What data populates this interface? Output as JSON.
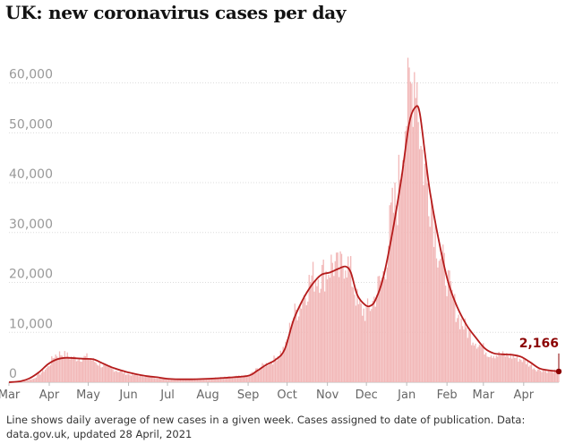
{
  "title": "UK: new coronavirus cases per day",
  "footnote": "Line shows daily average of new cases in a given week. Cases assigned to date of publication. Data: data.gov.uk, updated 28 April, 2021",
  "chart_data": {
    "type": "bar",
    "title": "UK: new coronavirus cases per day",
    "xlabel": "",
    "ylabel": "",
    "date_range": [
      "2020-03-01",
      "2021-04-28"
    ],
    "ylim": [
      0,
      68000
    ],
    "yticks": [
      0,
      10000,
      20000,
      30000,
      40000,
      50000,
      60000
    ],
    "ytick_labels": [
      "0",
      "10,000",
      "20,000",
      "30,000",
      "40,000",
      "50,000",
      "60,000"
    ],
    "xticks": [
      {
        "date": "2020-03-01",
        "label": "Mar"
      },
      {
        "date": "2020-04-01",
        "label": "Apr"
      },
      {
        "date": "2020-05-01",
        "label": "May"
      },
      {
        "date": "2020-06-01",
        "label": "Jun"
      },
      {
        "date": "2020-07-01",
        "label": "Jul"
      },
      {
        "date": "2020-08-01",
        "label": "Aug"
      },
      {
        "date": "2020-09-01",
        "label": "Sep"
      },
      {
        "date": "2020-10-01",
        "label": "Oct"
      },
      {
        "date": "2020-11-01",
        "label": "Nov"
      },
      {
        "date": "2020-12-01",
        "label": "Dec"
      },
      {
        "date": "2021-01-01",
        "label": "Jan"
      },
      {
        "date": "2021-02-01",
        "label": "Feb"
      },
      {
        "date": "2021-03-01",
        "label": "Mar"
      },
      {
        "date": "2021-04-01",
        "label": "Apr"
      }
    ],
    "grid": true,
    "legend": "none",
    "series": [
      {
        "type": "bar",
        "color": "#f2b8b8",
        "daily_points": [
          [
            "2020-03-01",
            20
          ],
          [
            "2020-03-10",
            80
          ],
          [
            "2020-03-20",
            700
          ],
          [
            "2020-03-31",
            3000
          ],
          [
            "2020-04-05",
            5400
          ],
          [
            "2020-04-10",
            5700
          ],
          [
            "2020-04-20",
            4800
          ],
          [
            "2020-05-01",
            5000
          ],
          [
            "2020-05-10",
            3500
          ],
          [
            "2020-05-20",
            2600
          ],
          [
            "2020-06-01",
            1600
          ],
          [
            "2020-06-15",
            1200
          ],
          [
            "2020-07-01",
            600
          ],
          [
            "2020-07-15",
            600
          ],
          [
            "2020-08-01",
            750
          ],
          [
            "2020-08-15",
            1000
          ],
          [
            "2020-09-01",
            1300
          ],
          [
            "2020-09-10",
            3000
          ],
          [
            "2020-09-20",
            4300
          ],
          [
            "2020-09-30",
            7100
          ],
          [
            "2020-10-05",
            13000
          ],
          [
            "2020-10-10",
            15000
          ],
          [
            "2020-10-20",
            21000
          ],
          [
            "2020-10-31",
            22000
          ],
          [
            "2020-11-05",
            24000
          ],
          [
            "2020-11-10",
            22000
          ],
          [
            "2020-11-15",
            25000
          ],
          [
            "2020-11-21",
            20000
          ],
          [
            "2020-11-25",
            15000
          ],
          [
            "2020-12-01",
            14000
          ],
          [
            "2020-12-06",
            16000
          ],
          [
            "2020-12-10",
            19000
          ],
          [
            "2020-12-15",
            22000
          ],
          [
            "2020-12-20",
            33000
          ],
          [
            "2020-12-25",
            37000
          ],
          [
            "2020-12-30",
            52000
          ],
          [
            "2021-01-05",
            59000
          ],
          [
            "2021-01-08",
            65000
          ],
          [
            "2021-01-12",
            47000
          ],
          [
            "2021-01-16",
            41000
          ],
          [
            "2021-01-20",
            37000
          ],
          [
            "2021-01-25",
            27000
          ],
          [
            "2021-01-31",
            22000
          ],
          [
            "2021-02-05",
            17000
          ],
          [
            "2021-02-10",
            13000
          ],
          [
            "2021-02-15",
            11000
          ],
          [
            "2021-02-20",
            9000
          ],
          [
            "2021-02-28",
            7000
          ],
          [
            "2021-03-05",
            5800
          ],
          [
            "2021-03-12",
            5500
          ],
          [
            "2021-03-20",
            5400
          ],
          [
            "2021-03-28",
            4800
          ],
          [
            "2021-04-01",
            4400
          ],
          [
            "2021-04-10",
            2700
          ],
          [
            "2021-04-20",
            2200
          ],
          [
            "2021-04-28",
            2166
          ]
        ]
      },
      {
        "type": "line",
        "color": "#b51c1c",
        "points": [
          [
            "2020-03-01",
            0
          ],
          [
            "2020-03-10",
            200
          ],
          [
            "2020-03-17",
            800
          ],
          [
            "2020-03-24",
            2000
          ],
          [
            "2020-03-31",
            3600
          ],
          [
            "2020-04-07",
            4600
          ],
          [
            "2020-04-14",
            4900
          ],
          [
            "2020-04-21",
            4800
          ],
          [
            "2020-04-28",
            4700
          ],
          [
            "2020-05-05",
            4600
          ],
          [
            "2020-05-12",
            3800
          ],
          [
            "2020-05-19",
            3000
          ],
          [
            "2020-05-26",
            2400
          ],
          [
            "2020-06-02",
            1900
          ],
          [
            "2020-06-09",
            1500
          ],
          [
            "2020-06-16",
            1200
          ],
          [
            "2020-06-23",
            1000
          ],
          [
            "2020-07-01",
            700
          ],
          [
            "2020-07-15",
            600
          ],
          [
            "2020-08-01",
            700
          ],
          [
            "2020-08-15",
            900
          ],
          [
            "2020-09-01",
            1300
          ],
          [
            "2020-09-08",
            2300
          ],
          [
            "2020-09-15",
            3500
          ],
          [
            "2020-09-22",
            4500
          ],
          [
            "2020-09-29",
            6500
          ],
          [
            "2020-10-06",
            12500
          ],
          [
            "2020-10-13",
            16500
          ],
          [
            "2020-10-20",
            19500
          ],
          [
            "2020-10-27",
            21500
          ],
          [
            "2020-11-03",
            22000
          ],
          [
            "2020-11-10",
            22800
          ],
          [
            "2020-11-15",
            23200
          ],
          [
            "2020-11-19",
            22000
          ],
          [
            "2020-11-24",
            17500
          ],
          [
            "2020-11-30",
            15500
          ],
          [
            "2020-12-04",
            15300
          ],
          [
            "2020-12-08",
            16500
          ],
          [
            "2020-12-14",
            21000
          ],
          [
            "2020-12-21",
            30000
          ],
          [
            "2020-12-28",
            41000
          ],
          [
            "2021-01-03",
            52000
          ],
          [
            "2021-01-08",
            55200
          ],
          [
            "2021-01-11",
            54000
          ],
          [
            "2021-01-15",
            46000
          ],
          [
            "2021-01-19",
            38000
          ],
          [
            "2021-01-26",
            28000
          ],
          [
            "2021-02-02",
            20000
          ],
          [
            "2021-02-09",
            15000
          ],
          [
            "2021-02-16",
            11500
          ],
          [
            "2021-02-23",
            9000
          ],
          [
            "2021-03-02",
            6800
          ],
          [
            "2021-03-09",
            5800
          ],
          [
            "2021-03-16",
            5600
          ],
          [
            "2021-03-23",
            5500
          ],
          [
            "2021-03-30",
            5100
          ],
          [
            "2021-04-06",
            4000
          ],
          [
            "2021-04-13",
            2800
          ],
          [
            "2021-04-20",
            2400
          ],
          [
            "2021-04-28",
            2166
          ]
        ]
      }
    ],
    "annotations": [
      {
        "date": "2021-04-28",
        "value": 2166,
        "label": "2,166"
      }
    ]
  }
}
